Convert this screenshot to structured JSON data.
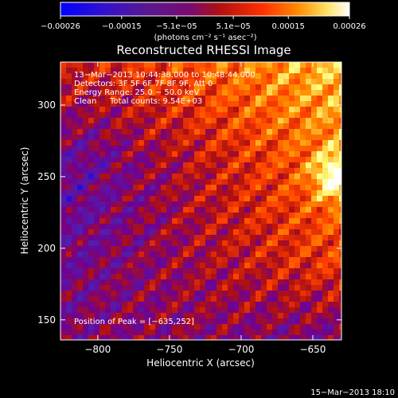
{
  "chart_data": {
    "type": "heatmap",
    "title": "Reconstructed RHESSI Image",
    "xlabel": "Heliocentric X (arcsec)",
    "ylabel": "Heliocentric Y (arcsec)",
    "xlim": [
      -826,
      -630
    ],
    "ylim": [
      136,
      330
    ],
    "x_ticks": [
      -800,
      -750,
      -700,
      -650
    ],
    "x_tick_labels": [
      "−800",
      "−750",
      "−700",
      "−650"
    ],
    "y_ticks": [
      150,
      200,
      250,
      300
    ],
    "y_tick_labels": [
      "150",
      "200",
      "250",
      "300"
    ],
    "colorbar": {
      "range": [
        -0.00026,
        0.00026
      ],
      "ticks": [
        -0.00026,
        -0.00015,
        -5.1e-05,
        5.1e-05,
        0.00015,
        0.00026
      ],
      "tick_labels": [
        "−0.00026",
        "−0.00015",
        "−5.1e−05",
        "5.1e−05",
        "0.00015",
        "0.00026"
      ],
      "unit_label": "(photons cm⁻² s⁻¹ asec⁻²)",
      "colors": [
        "#0000ff",
        "#5020b0",
        "#700090",
        "#b01010",
        "#ff4000",
        "#ff9000",
        "#ffff80",
        "#ffffff"
      ]
    },
    "annotations": {
      "time_range": "13−Mar−2013 10:44:38.000 to 10:48:44.000",
      "detectors": "Detectors: 3F 5F 6F 7F 8F 9F, Att 0",
      "energy_range": "Energy Range: 25.0 − 50.0 keV",
      "method": "Clean",
      "total_counts": "Total counts: 9.54E+03",
      "peak": "Position of Peak = [−635,252]"
    },
    "peak_position": [
      -635,
      252
    ],
    "grid": false
  },
  "footer": {
    "date": "15−Mar−2013 18:10"
  }
}
